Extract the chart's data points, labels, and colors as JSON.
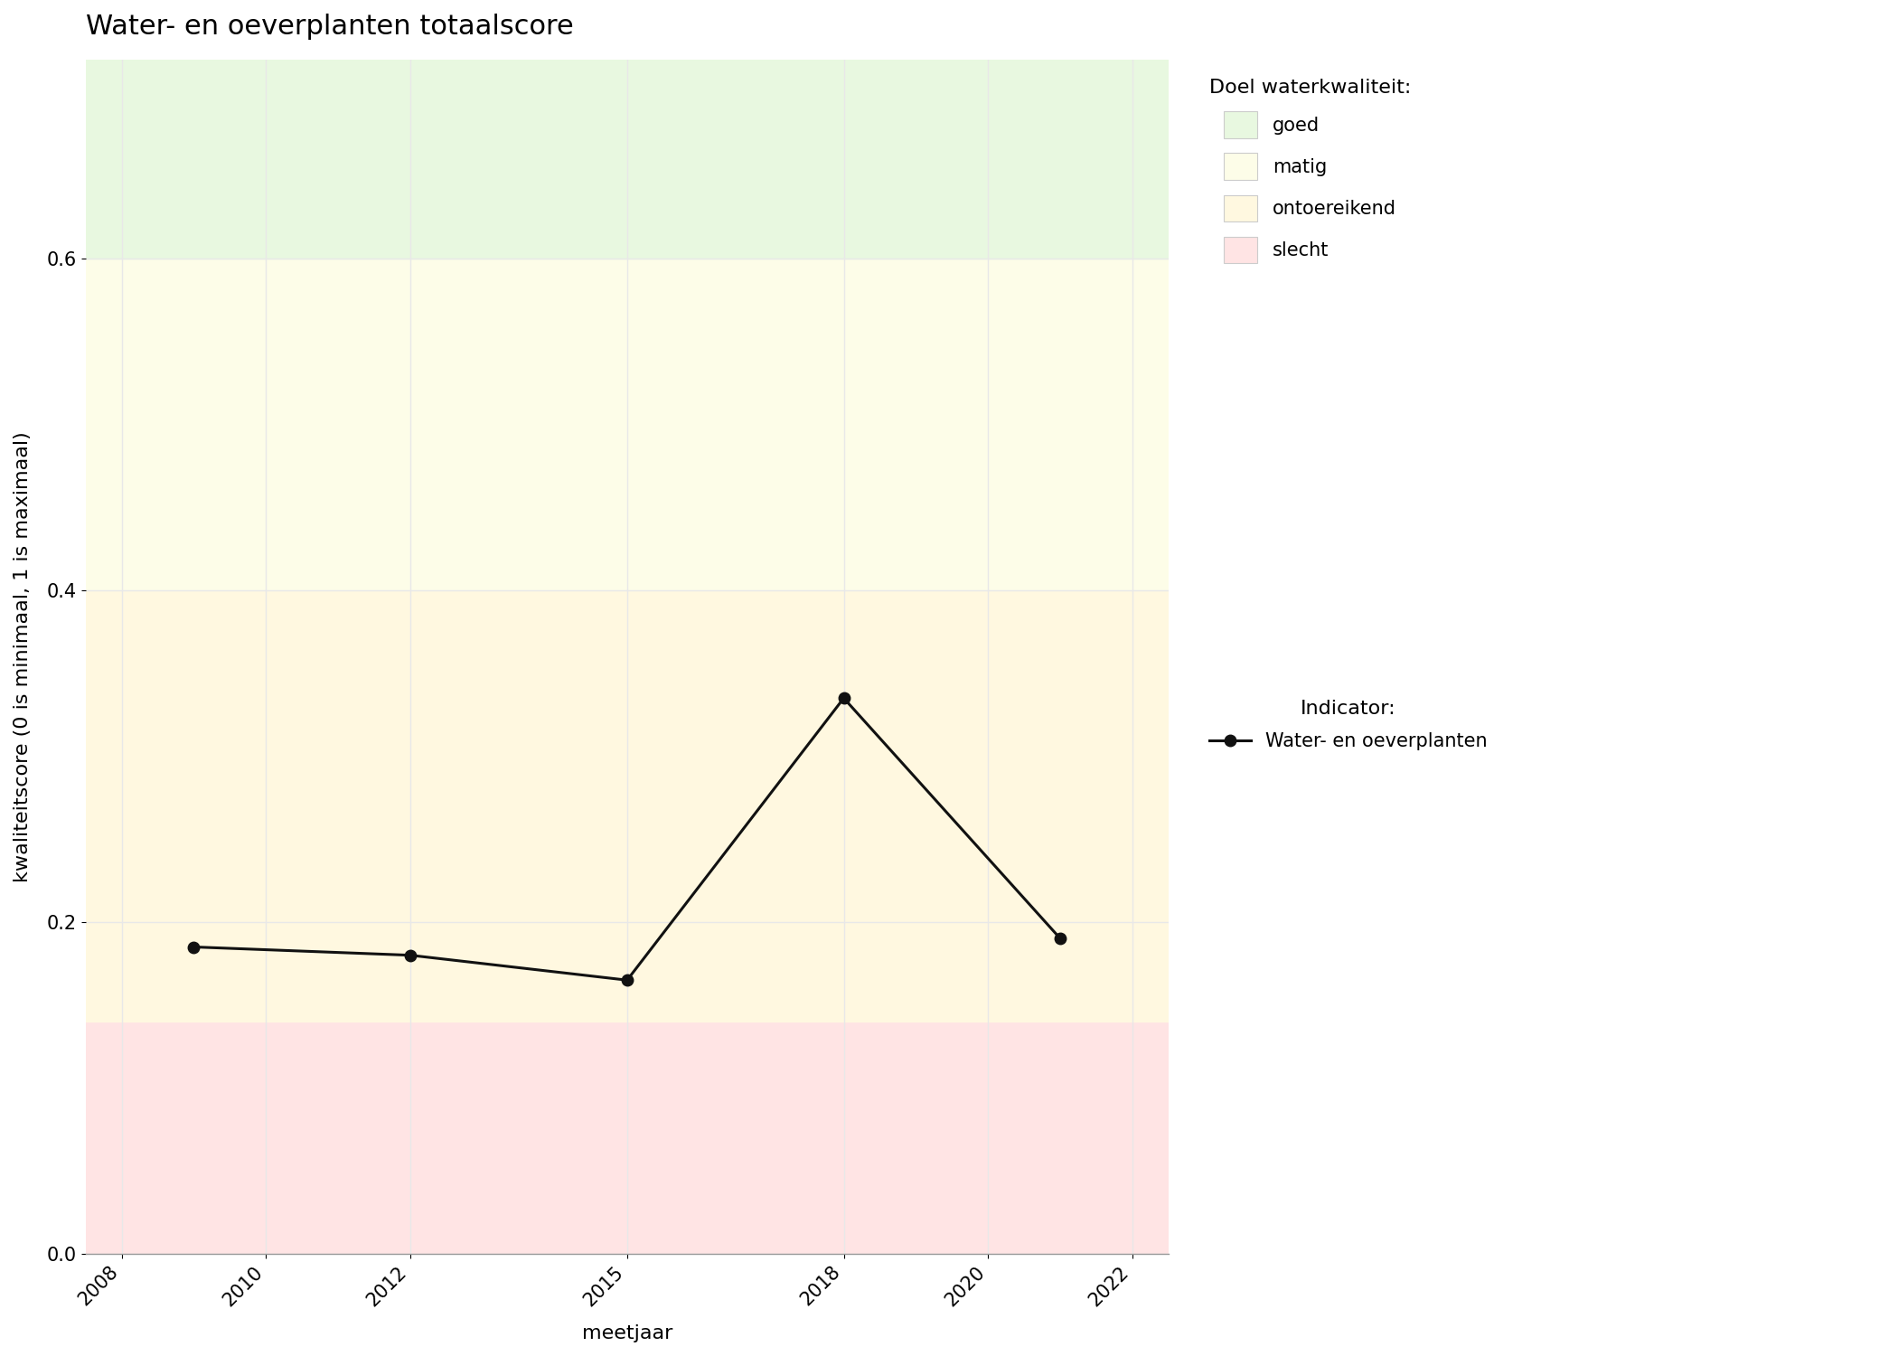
{
  "title": "Water- en oeverplanten totaalscore",
  "xlabel": "meetjaar",
  "ylabel": "kwaliteitscore (0 is minimaal, 1 is maximaal)",
  "xlim": [
    2007.5,
    2022.5
  ],
  "ylim": [
    0.0,
    0.72
  ],
  "xticks": [
    2008,
    2010,
    2012,
    2015,
    2018,
    2020,
    2022
  ],
  "yticks": [
    0.0,
    0.2,
    0.4,
    0.6
  ],
  "years": [
    2009,
    2012,
    2015,
    2018,
    2021
  ],
  "values": [
    0.185,
    0.18,
    0.165,
    0.335,
    0.19
  ],
  "bg_zones": [
    {
      "ymin": 0.0,
      "ymax": 0.14,
      "color": "#FFE4E4",
      "label": "slecht"
    },
    {
      "ymin": 0.14,
      "ymax": 0.4,
      "color": "#FFF8E0",
      "label": "ontoereikend"
    },
    {
      "ymin": 0.4,
      "ymax": 0.6,
      "color": "#FDFDE8",
      "label": "matig"
    },
    {
      "ymin": 0.6,
      "ymax": 0.72,
      "color": "#E8F8E0",
      "label": "goed"
    }
  ],
  "line_color": "#111111",
  "marker_style": "o",
  "marker_size": 9,
  "line_width": 2.2,
  "legend_title_doel": "Doel waterkwaliteit:",
  "legend_title_indicator": "Indicator:",
  "legend_indicator_label": "Water- en oeverplanten",
  "plot_bg_color": "#FFFFFF",
  "fig_bg_color": "#FFFFFF",
  "grid_color": "#E8E8E8",
  "title_fontsize": 22,
  "axis_label_fontsize": 16,
  "tick_fontsize": 15,
  "legend_fontsize": 15,
  "legend_title_fontsize": 16
}
